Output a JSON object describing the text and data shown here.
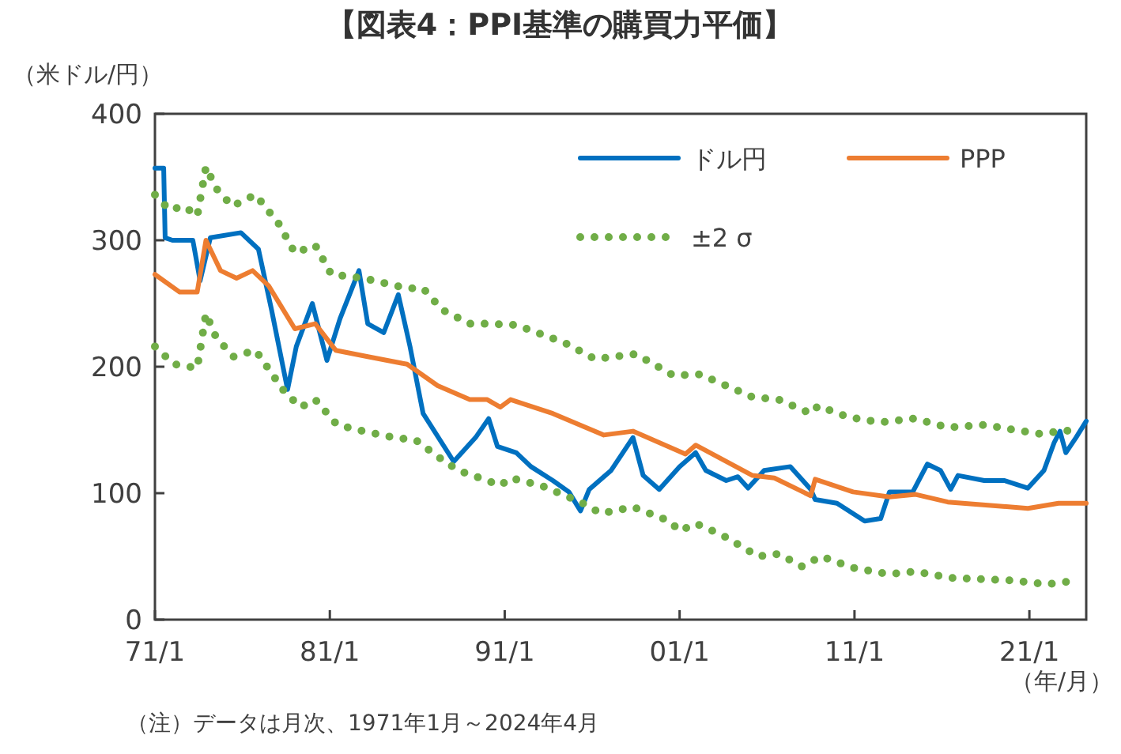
{
  "chart_data": {
    "type": "line",
    "title": "【図表4：PPI基準の購買力平価】",
    "ylabel": "（米ドル/円）",
    "xlabel": "（年/月）",
    "annotations": [
      "（注）データは月次、1971年1月～2024年4月"
    ],
    "xlim": [
      "1971-01",
      "2024-04"
    ],
    "xticks": [
      {
        "value": "1971-01",
        "label": "71/1"
      },
      {
        "value": "1981-01",
        "label": "81/1"
      },
      {
        "value": "1991-01",
        "label": "91/1"
      },
      {
        "value": "2001-01",
        "label": "01/1"
      },
      {
        "value": "2011-01",
        "label": "11/1"
      },
      {
        "value": "2021-01",
        "label": "21/1"
      }
    ],
    "ylim": [
      0,
      400
    ],
    "yticks": [
      0,
      100,
      200,
      300,
      400
    ],
    "grid": false,
    "legend": "top right",
    "marker": "none",
    "series": [
      {
        "name": "ドル円",
        "color": "#0070c0",
        "line_style": "solid",
        "x": [
          "1971-01",
          "1971-07",
          "1971-08",
          "1972-01",
          "1973-03",
          "1973-08",
          "1974-03",
          "1975-12",
          "1976-12",
          "1977-09",
          "1978-08",
          "1979-02",
          "1980-01",
          "1980-11",
          "1981-08",
          "1982-09",
          "1983-03",
          "1984-02",
          "1984-12",
          "1985-08",
          "1986-05",
          "1988-02",
          "1989-05",
          "1990-02",
          "1990-08",
          "1991-09",
          "1992-07",
          "1993-10",
          "1994-09",
          "1995-05",
          "1995-11",
          "1997-02",
          "1998-05",
          "1998-12",
          "1999-11",
          "2001-01",
          "2001-12",
          "2002-07",
          "2003-09",
          "2004-05",
          "2004-12",
          "2005-11",
          "2007-05",
          "2008-07",
          "2008-10",
          "2010-01",
          "2011-08",
          "2012-07",
          "2013-01",
          "2014-05",
          "2015-03",
          "2015-12",
          "2016-07",
          "2016-12",
          "2018-06",
          "2019-08",
          "2020-12",
          "2021-11",
          "2022-06",
          "2022-10",
          "2023-02",
          "2023-09",
          "2024-04"
        ],
        "values": [
          357,
          357,
          302,
          300,
          300,
          268,
          302,
          306,
          293,
          245,
          182,
          216,
          250,
          205,
          238,
          276,
          234,
          227,
          257,
          216,
          163,
          125,
          144,
          159,
          137,
          132,
          121,
          110,
          101,
          86,
          103,
          118,
          144,
          114,
          103,
          121,
          132,
          118,
          110,
          113,
          104,
          118,
          121,
          103,
          95,
          92,
          78,
          80,
          101,
          101,
          123,
          118,
          103,
          114,
          110,
          110,
          104,
          118,
          140,
          149,
          132,
          144,
          157
        ]
      },
      {
        "name": "PPP",
        "color": "#ed7d31",
        "line_style": "solid",
        "x": [
          "1971-01",
          "1972-06",
          "1973-06",
          "1973-12",
          "1974-10",
          "1975-09",
          "1976-08",
          "1977-07",
          "1979-01",
          "1980-03",
          "1981-05",
          "1983-03",
          "1985-06",
          "1987-03",
          "1989-01",
          "1990-01",
          "1990-10",
          "1991-05",
          "1993-10",
          "1996-09",
          "1998-05",
          "2001-05",
          "2001-12",
          "2005-03",
          "2006-06",
          "2008-07",
          "2008-10",
          "2010-12",
          "2013-01",
          "2014-07",
          "2016-05",
          "2020-12",
          "2022-09",
          "2024-04"
        ],
        "values": [
          273,
          259,
          259,
          300,
          276,
          270,
          276,
          264,
          230,
          234,
          213,
          208,
          202,
          185,
          174,
          174,
          168,
          174,
          163,
          146,
          149,
          131,
          138,
          114,
          112,
          98,
          111,
          101,
          97,
          99,
          93,
          88,
          92,
          92
        ]
      },
      {
        "name": "±2 σ",
        "color": "#70ad47",
        "line_style": "dotted",
        "x": [
          "1971-01",
          "1971-11",
          "1972-09",
          "1973-06",
          "1973-12",
          "1974-07",
          "1975-06",
          "1976-10",
          "1978-02",
          "1979-01",
          "1980-03",
          "1981-02",
          "1982-12",
          "1985-06",
          "1986-05",
          "1987-06",
          "1989-01",
          "1990-01",
          "1991-09",
          "1994-06",
          "1996-03",
          "1998-07",
          "2000-09",
          "2002-03",
          "2003-09",
          "2005-03",
          "2006-09",
          "2008-07",
          "2008-12",
          "2010-09",
          "2012-07",
          "2014-06",
          "2016-05",
          "2018-06",
          "2021-07",
          "2023-08"
        ],
        "values": [
          336,
          324,
          327,
          319,
          358,
          341,
          327,
          336,
          313,
          290,
          296,
          273,
          270,
          262,
          262,
          245,
          234,
          234,
          233,
          219,
          206,
          210,
          193,
          194,
          185,
          176,
          174,
          163,
          169,
          160,
          156,
          159,
          152,
          154,
          147,
          150
        ]
      },
      {
        "color": "#70ad47",
        "line_style": "dotted",
        "x": [
          "1971-01",
          "1972-02",
          "1973-06",
          "1973-12",
          "1974-07",
          "1975-07",
          "1976-10",
          "1978-06",
          "1979-05",
          "1980-03",
          "1981-06",
          "1982-12",
          "1984-09",
          "1985-12",
          "1987-03",
          "1988-05",
          "1990-01",
          "1990-10",
          "1991-05",
          "1993-02",
          "1995-05",
          "1996-07",
          "1998-05",
          "2000-06",
          "2001-01",
          "2001-12",
          "2003-06",
          "2005-07",
          "2006-09",
          "2008-01",
          "2009-02",
          "2010-12",
          "2012-12",
          "2014-07",
          "2016-07",
          "2020-01",
          "2022-01",
          "2023-10"
        ],
        "values": [
          216,
          202,
          199,
          242,
          223,
          208,
          213,
          180,
          168,
          174,
          154,
          149,
          144,
          142,
          129,
          118,
          110,
          106,
          112,
          106,
          93,
          84,
          89,
          78,
          70,
          76,
          67,
          50,
          52,
          42,
          50,
          41,
          36,
          38,
          33,
          31,
          28,
          31
        ]
      }
    ]
  }
}
